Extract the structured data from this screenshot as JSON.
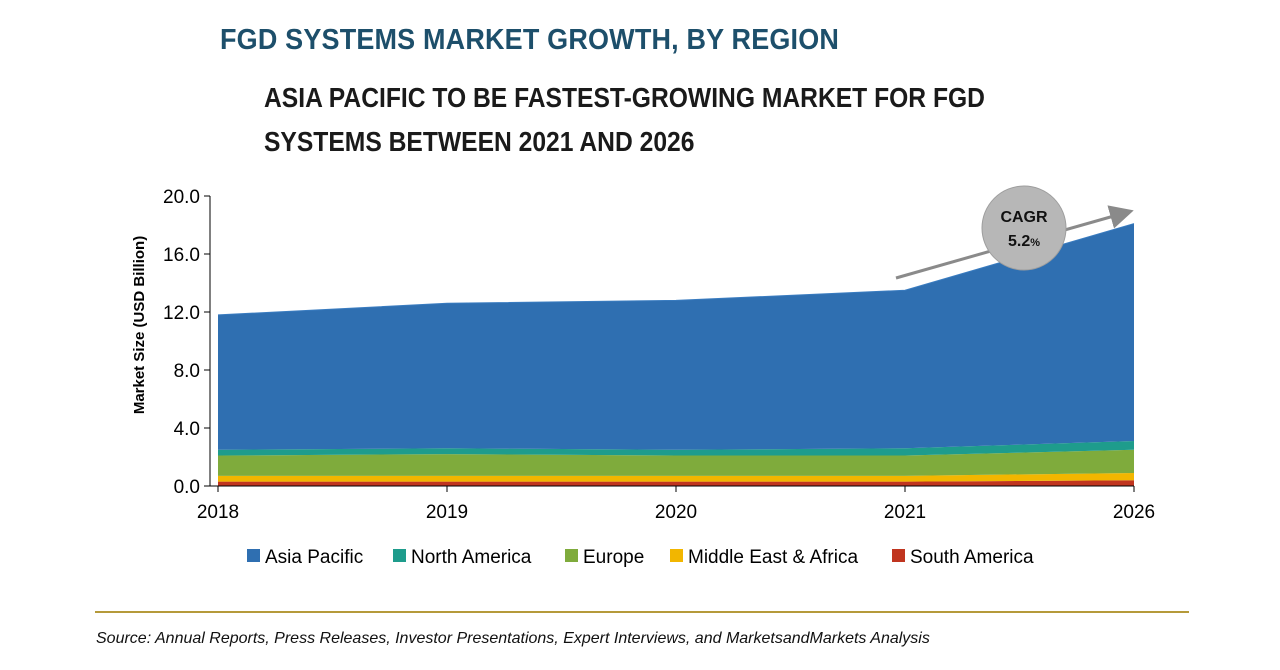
{
  "title": "FGD SYSTEMS MARKET GROWTH, BY REGION",
  "subtitle": "ASIA PACIFIC TO BE FASTEST-GROWING MARKET FOR FGD SYSTEMS BETWEEN 2021 AND 2026",
  "source": "Source: Annual Reports, Press Releases, Investor Presentations, Expert Interviews, and MarketsandMarkets Analysis",
  "colors": {
    "asia_pacific": "#2f6fb1",
    "north_america": "#1e9c8c",
    "europe": "#7fab3c",
    "middle_east_africa": "#f2b600",
    "south_america": "#c0351f",
    "cagr_bubble": "#b7b7b7",
    "arrow": "#8a8a8a"
  },
  "chart_data": {
    "type": "area",
    "stacked": true,
    "title": "FGD SYSTEMS MARKET GROWTH, BY REGION",
    "xlabel": "",
    "ylabel": "Market Size (USD Billion)",
    "ylim": [
      0,
      20
    ],
    "yticks": [
      "0.0",
      "4.0",
      "8.0",
      "12.0",
      "16.0",
      "20.0"
    ],
    "categories": [
      "2018",
      "2019",
      "2020",
      "2021",
      "2026"
    ],
    "legend_position": "bottom",
    "series": [
      {
        "name": "South America",
        "color": "#c0351f",
        "values": [
          0.3,
          0.3,
          0.3,
          0.3,
          0.4
        ]
      },
      {
        "name": "Middle East & Africa",
        "color": "#f2b600",
        "values": [
          0.4,
          0.4,
          0.4,
          0.4,
          0.5
        ]
      },
      {
        "name": "Europe",
        "color": "#7fab3c",
        "values": [
          1.4,
          1.5,
          1.4,
          1.4,
          1.6
        ]
      },
      {
        "name": "North America",
        "color": "#1e9c8c",
        "values": [
          0.4,
          0.4,
          0.4,
          0.5,
          0.6
        ]
      },
      {
        "name": "Asia Pacific",
        "color": "#2f6fb1",
        "values": [
          9.3,
          10.0,
          10.3,
          10.9,
          15.0
        ]
      }
    ],
    "legend_order": [
      "Asia Pacific",
      "North America",
      "Europe",
      "Middle East & Africa",
      "South America"
    ],
    "annotation": {
      "label": "CAGR",
      "value": "5.2",
      "unit": "%"
    }
  }
}
